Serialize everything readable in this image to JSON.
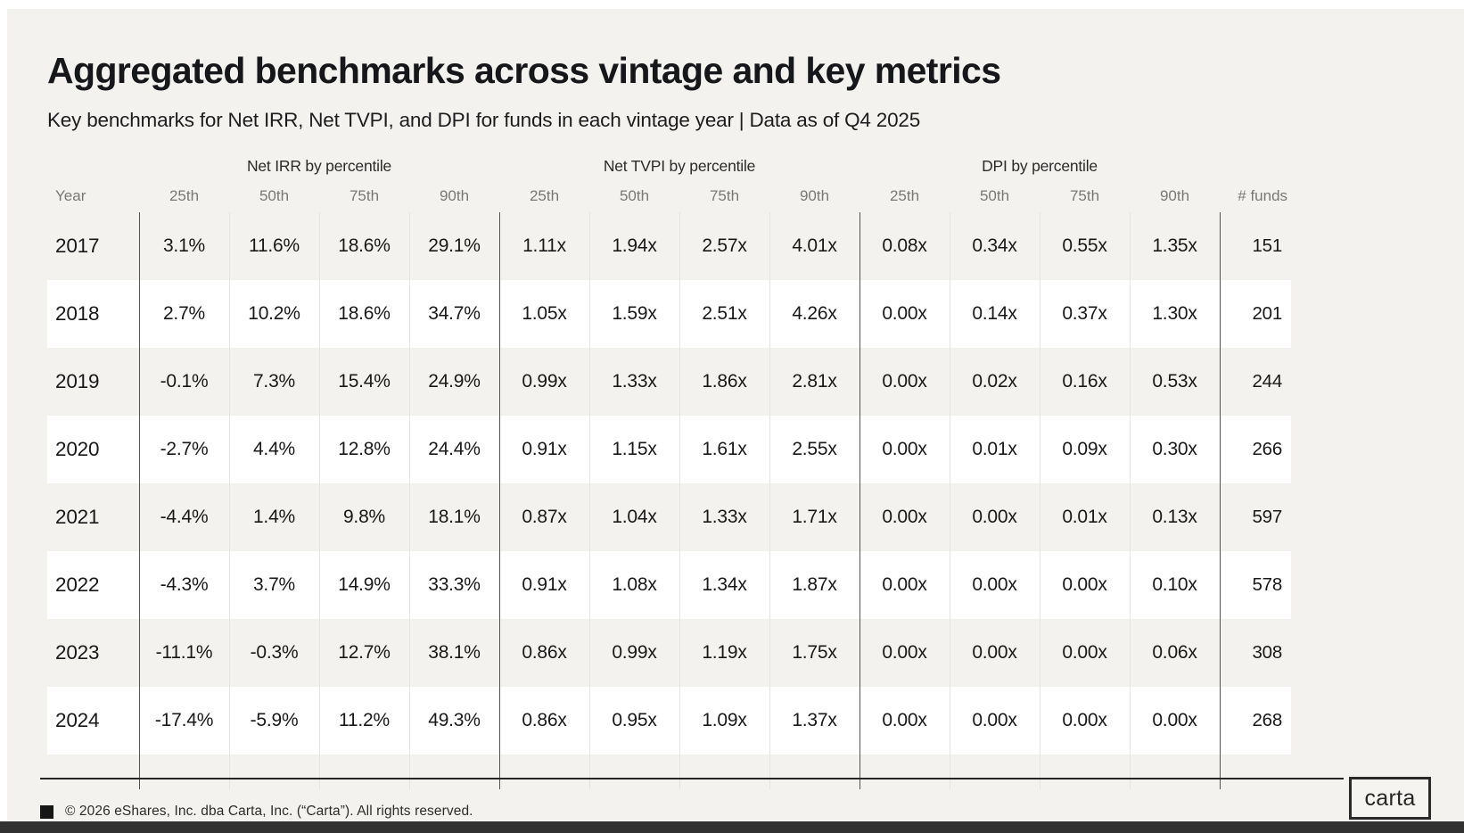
{
  "colors": {
    "card_bg": "#f4f2ee",
    "row_alt": "#ffffff",
    "dark_separator": "#535353",
    "light_separator": "#e6e3dd",
    "divider": "#262626",
    "text_primary": "#191919",
    "text_muted": "#7a7874",
    "bottom_bar": "#313131"
  },
  "header": {
    "title": "Aggregated benchmarks across vintage and key metrics",
    "subtitle": "Key benchmarks for Net IRR, Net TVPI, and DPI for funds in each vintage year | Data as of Q4 2025"
  },
  "chart_data": {
    "type": "table",
    "title": "Aggregated benchmarks across vintage and key metrics",
    "subtitle": "Key benchmarks for Net IRR, Net TVPI, and DPI for funds in each vintage year | Data as of Q4 2025",
    "group_headers": [
      "Net IRR by percentile",
      "Net TVPI by percentile",
      "DPI by percentile"
    ],
    "columns": [
      "Year",
      "25th",
      "50th",
      "75th",
      "90th",
      "25th",
      "50th",
      "75th",
      "90th",
      "25th",
      "50th",
      "75th",
      "90th",
      "# funds"
    ],
    "rows": [
      [
        "2017",
        "3.1%",
        "11.6%",
        "18.6%",
        "29.1%",
        "1.11x",
        "1.94x",
        "2.57x",
        "4.01x",
        "0.08x",
        "0.34x",
        "0.55x",
        "1.35x",
        "151"
      ],
      [
        "2018",
        "2.7%",
        "10.2%",
        "18.6%",
        "34.7%",
        "1.05x",
        "1.59x",
        "2.51x",
        "4.26x",
        "0.00x",
        "0.14x",
        "0.37x",
        "1.30x",
        "201"
      ],
      [
        "2019",
        "-0.1%",
        "7.3%",
        "15.4%",
        "24.9%",
        "0.99x",
        "1.33x",
        "1.86x",
        "2.81x",
        "0.00x",
        "0.02x",
        "0.16x",
        "0.53x",
        "244"
      ],
      [
        "2020",
        "-2.7%",
        "4.4%",
        "12.8%",
        "24.4%",
        "0.91x",
        "1.15x",
        "1.61x",
        "2.55x",
        "0.00x",
        "0.01x",
        "0.09x",
        "0.30x",
        "266"
      ],
      [
        "2021",
        "-4.4%",
        "1.4%",
        "9.8%",
        "18.1%",
        "0.87x",
        "1.04x",
        "1.33x",
        "1.71x",
        "0.00x",
        "0.00x",
        "0.01x",
        "0.13x",
        "597"
      ],
      [
        "2022",
        "-4.3%",
        "3.7%",
        "14.9%",
        "33.3%",
        "0.91x",
        "1.08x",
        "1.34x",
        "1.87x",
        "0.00x",
        "0.00x",
        "0.00x",
        "0.10x",
        "578"
      ],
      [
        "2023",
        "-11.1%",
        "-0.3%",
        "12.7%",
        "38.1%",
        "0.86x",
        "0.99x",
        "1.19x",
        "1.75x",
        "0.00x",
        "0.00x",
        "0.00x",
        "0.06x",
        "308"
      ],
      [
        "2024",
        "-17.4%",
        "-5.9%",
        "11.2%",
        "49.3%",
        "0.86x",
        "0.95x",
        "1.09x",
        "1.37x",
        "0.00x",
        "0.00x",
        "0.00x",
        "0.00x",
        "268"
      ]
    ]
  },
  "footer": {
    "copyright": "© 2026 eShares, Inc. dba Carta, Inc. (“Carta”). All rights reserved.",
    "logo_text": "carta"
  }
}
